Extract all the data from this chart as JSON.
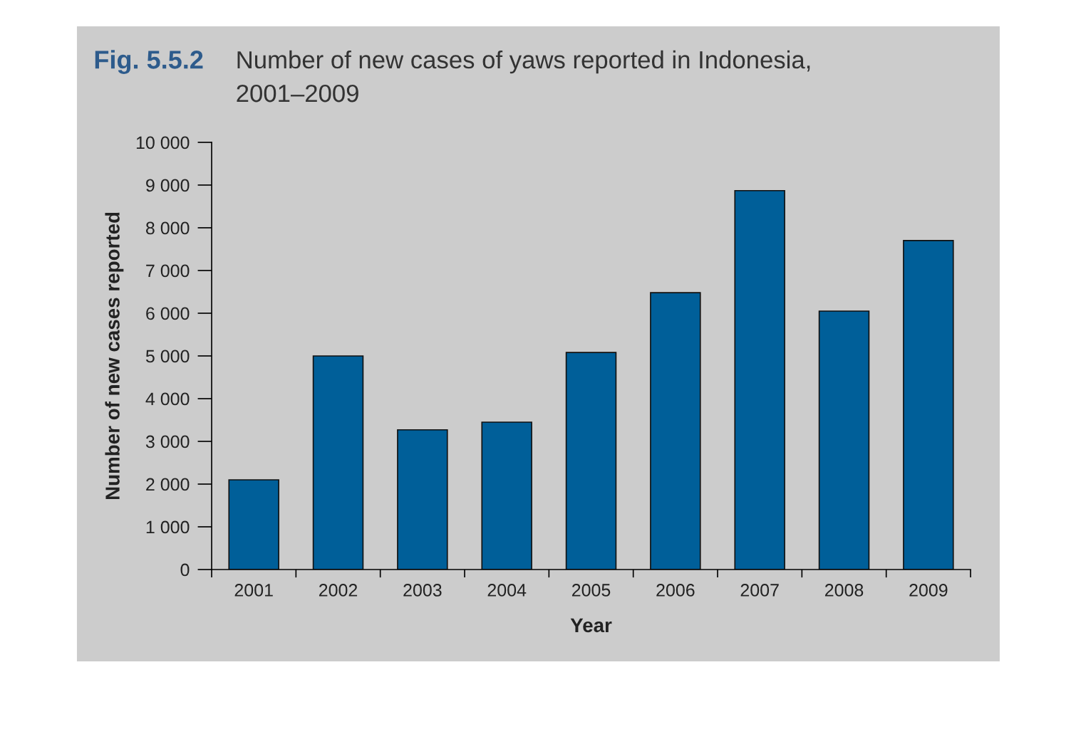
{
  "chart_data": {
    "type": "bar",
    "title": "Fig. 5.5.2",
    "subtitle": "Number of new cases of yaws reported in Indonesia,\n2001–2009",
    "xlabel": "Year",
    "ylabel": "Number of new cases reported",
    "categories": [
      "2001",
      "2002",
      "2003",
      "2004",
      "2005",
      "2006",
      "2007",
      "2008",
      "2009"
    ],
    "values": [
      2100,
      5000,
      3270,
      3450,
      5080,
      6480,
      8870,
      6050,
      7700
    ],
    "color": "#005f99",
    "ylim": [
      0,
      10000
    ],
    "yticks": [
      {
        "value": 0,
        "label": "0"
      },
      {
        "value": 1000,
        "label": "1 000"
      },
      {
        "value": 2000,
        "label": "2 000"
      },
      {
        "value": 3000,
        "label": "3 000"
      },
      {
        "value": 4000,
        "label": "4 000"
      },
      {
        "value": 5000,
        "label": "5 000"
      },
      {
        "value": 6000,
        "label": "6 000"
      },
      {
        "value": 7000,
        "label": "7 000"
      },
      {
        "value": 8000,
        "label": "8 000"
      },
      {
        "value": 9000,
        "label": "9 000"
      },
      {
        "value": 10000,
        "label": "10 000"
      }
    ],
    "grid": false,
    "legend": false
  }
}
